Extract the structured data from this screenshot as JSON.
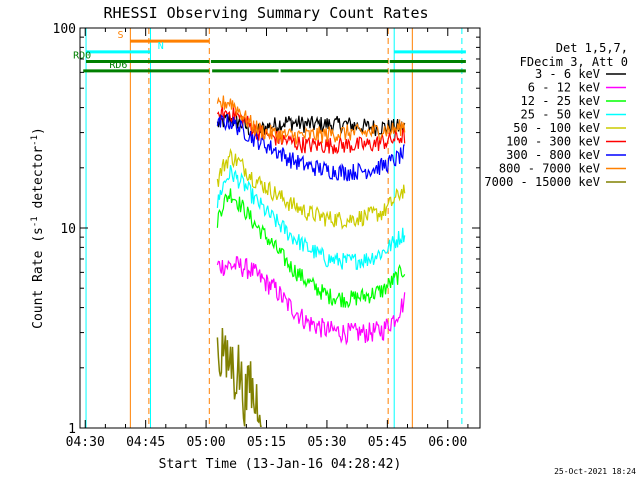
{
  "chart_data": {
    "type": "line",
    "title": "RHESSI Observing Summary Count Rates",
    "xlabel": "Start Time (13-Jan-16 04:28:42)",
    "ylabel": "Count Rate (s",
    "ylabel_sup": "-1",
    "ylabel_tail": " detector",
    "ylabel_close": ")",
    "yscale": "log",
    "ylim": [
      1,
      100
    ],
    "xlim_min": [
      268.7,
      368
    ],
    "x_units": "minutes after 00:00 UT",
    "y_ticks": [
      {
        "value": 1,
        "label": "1"
      },
      {
        "value": 10,
        "label": "10"
      },
      {
        "value": 100,
        "label": "100"
      }
    ],
    "x_ticks": [
      {
        "value": 270,
        "label": "04:30"
      },
      {
        "value": 285,
        "label": "04:45"
      },
      {
        "value": 300,
        "label": "05:00"
      },
      {
        "value": 315,
        "label": "05:15"
      },
      {
        "value": 330,
        "label": "05:30"
      },
      {
        "value": 345,
        "label": "05:45"
      },
      {
        "value": 360,
        "label": "06:00"
      }
    ],
    "legend": {
      "placement": "top-right, outside plot",
      "header": [
        "Det 1,5,7,",
        "FDecim 3, Att 0"
      ]
    },
    "series": [
      {
        "name": "3 - 6 keV",
        "color": "#000000",
        "x": [
          302.8,
          304,
          306,
          308,
          310,
          312,
          315,
          320,
          325,
          330,
          335,
          340,
          344,
          347,
          349.5
        ],
        "y": [
          33,
          34,
          35,
          34,
          32,
          30,
          32,
          34,
          33,
          33,
          33,
          32,
          32,
          32,
          32
        ]
      },
      {
        "name": "6 - 12 keV",
        "color": "#ff00ff",
        "x": [
          302.8,
          305,
          308,
          311,
          314,
          317,
          320,
          325,
          330,
          335,
          340,
          344,
          347,
          349.5
        ],
        "y": [
          6.5,
          6.5,
          6.5,
          6.2,
          5.5,
          5,
          4.2,
          3.4,
          3.1,
          3.0,
          3.0,
          3.1,
          3.6,
          4.4
        ]
      },
      {
        "name": "12 - 25 keV",
        "color": "#00ff00",
        "x": [
          302.8,
          304,
          306,
          308,
          310,
          312,
          315,
          318,
          321,
          325,
          330,
          335,
          340,
          344,
          347,
          349.5
        ],
        "y": [
          11,
          13,
          15,
          13.5,
          12,
          10.5,
          9,
          7.6,
          6.4,
          5.4,
          4.6,
          4.4,
          4.6,
          4.9,
          5.6,
          6.3
        ]
      },
      {
        "name": "25 - 50 keV",
        "color": "#00ffff",
        "x": [
          302.8,
          304,
          306,
          308,
          310,
          312,
          315,
          318,
          321,
          325,
          330,
          335,
          340,
          344,
          347,
          349.5
        ],
        "y": [
          13,
          16,
          19,
          17.5,
          16,
          14,
          12,
          10.5,
          9.2,
          8,
          7,
          6.8,
          7,
          7.6,
          8.6,
          9.6
        ]
      },
      {
        "name": "50 - 100 keV",
        "color": "#cccc00",
        "x": [
          302.8,
          304,
          306,
          308,
          310,
          312,
          315,
          318,
          321,
          325,
          330,
          335,
          340,
          344,
          347,
          349.5
        ],
        "y": [
          17,
          20,
          23,
          21.5,
          19.5,
          17.5,
          16,
          14.5,
          13.2,
          12,
          11.2,
          11,
          11.5,
          12,
          14,
          16
        ]
      },
      {
        "name": "100 - 300 keV",
        "color": "#ff0000",
        "x": [
          302.8,
          304,
          306,
          308,
          310,
          312,
          315,
          318,
          321,
          325,
          330,
          335,
          340,
          344,
          347,
          349.5
        ],
        "y": [
          34,
          37,
          38,
          36,
          34,
          31,
          29,
          28,
          27,
          26,
          26,
          26,
          26,
          27,
          28,
          29
        ]
      },
      {
        "name": "300 - 800 keV",
        "color": "#0000ff",
        "x": [
          302.8,
          304,
          306,
          308,
          310,
          312,
          315,
          318,
          321,
          325,
          330,
          335,
          340,
          344,
          347,
          349.5
        ],
        "y": [
          32,
          34,
          34,
          32,
          30,
          28,
          26,
          24,
          22,
          20.5,
          19.5,
          19,
          19.5,
          20.5,
          22,
          24
        ]
      },
      {
        "name": "800 - 7000 keV",
        "color": "#ff8000",
        "x": [
          302.8,
          304,
          306,
          308,
          310,
          312,
          315,
          320,
          325,
          330,
          335,
          340,
          344,
          347,
          349.5
        ],
        "y": [
          40,
          42,
          43,
          39,
          35,
          32,
          30,
          29,
          29,
          29.5,
          30,
          30,
          31,
          31,
          33
        ]
      },
      {
        "name": "7000 - 15000 keV",
        "color": "#808000",
        "x": [
          302.8,
          303.5,
          304.2,
          305,
          306,
          307,
          308,
          309,
          310,
          311,
          312,
          313,
          314
        ],
        "y": [
          2.6,
          2.2,
          2.8,
          2.0,
          2.3,
          1.9,
          2.1,
          1.6,
          1.4,
          1.8,
          1.3,
          1.5,
          1.2
        ]
      }
    ],
    "annotations": {
      "vertical_lines": [
        {
          "x": 270.2,
          "color": "#00ffff",
          "style": "solid"
        },
        {
          "x": 281.2,
          "color": "#ff8000",
          "style": "solid"
        },
        {
          "x": 286.2,
          "color": "#00ffff",
          "style": "solid"
        },
        {
          "x": 285.8,
          "color": "#ff8000",
          "style": "dashed"
        },
        {
          "x": 300.8,
          "color": "#ff8000",
          "style": "dashed"
        },
        {
          "x": 345.2,
          "color": "#ff8000",
          "style": "dashed"
        },
        {
          "x": 346.7,
          "color": "#00ffff",
          "style": "solid"
        },
        {
          "x": 351.2,
          "color": "#ff8000",
          "style": "solid"
        },
        {
          "x": 363.5,
          "color": "#00ffff",
          "style": "dashed"
        }
      ],
      "flag_bars": [
        {
          "label": "S",
          "color": "#ff8000",
          "segments": [
            [
              281.2,
              300.8
            ]
          ],
          "level": 86,
          "label_x": 278
        },
        {
          "label": "N",
          "color": "#00ffff",
          "segments": [
            [
              270.2,
              286.2
            ],
            [
              346.7,
              364.5
            ]
          ],
          "level": 76,
          "label_x": 288
        },
        {
          "label": "RD0",
          "color": "#008000",
          "segments": [
            [
              270.2,
              300.8
            ],
            [
              301.2,
              345.2
            ],
            [
              345.6,
              364.5
            ]
          ],
          "level": 68,
          "label_x": 267
        },
        {
          "label": "RD6",
          "color": "#008000",
          "segments": [
            [
              269.5,
              300.8
            ],
            [
              301.5,
              318
            ],
            [
              318.5,
              345.2
            ],
            [
              345.6,
              364.5
            ]
          ],
          "level": 61,
          "label_x": 276
        }
      ]
    }
  },
  "footer": {
    "date_stamp": "25-Oct-2021 18:24"
  }
}
